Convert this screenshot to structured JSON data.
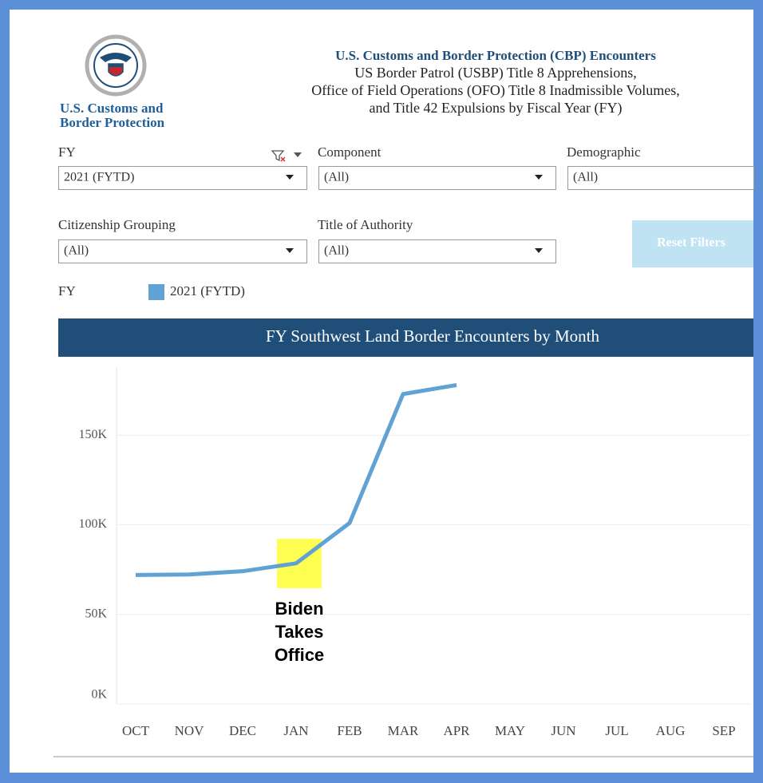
{
  "logo_text": [
    "U.S. Customs and",
    "Border Protection"
  ],
  "header": {
    "title": "U.S. Customs and Border Protection (CBP) Encounters",
    "lines": [
      "US Border Patrol (USBP) Title 8 Apprehensions,",
      "Office of Field Operations (OFO) Title 8 Inadmissible Volumes,",
      "and Title 42 Expulsions by Fiscal Year (FY)"
    ]
  },
  "filters": [
    {
      "label": "FY",
      "value": "2021 (FYTD)"
    },
    {
      "label": "Component",
      "value": "(All)"
    },
    {
      "label": "Demographic",
      "value": "(All)"
    },
    {
      "label": "Citizenship Grouping",
      "value": "(All)"
    },
    {
      "label": "Title of Authority",
      "value": "(All)"
    }
  ],
  "reset_button": "Reset Filters",
  "legend_title": "FY",
  "chart_data": {
    "type": "line",
    "title": "FY Southwest Land Border Encounters by Month",
    "categories": [
      "OCT",
      "NOV",
      "DEC",
      "JAN",
      "FEB",
      "MAR",
      "APR",
      "MAY",
      "JUN",
      "JUL",
      "AUG",
      "SEP"
    ],
    "series": [
      {
        "name": "2021 (FYTD)",
        "color": "#5fa2d3",
        "values": [
          72000,
          72300,
          74100,
          78500,
          101000,
          173000,
          178000,
          null,
          null,
          null,
          null,
          null
        ]
      }
    ],
    "ylim": [
      0,
      188000
    ],
    "yticks": [
      {
        "value": 0,
        "label": "0K"
      },
      {
        "value": 50000,
        "label": "50K"
      },
      {
        "value": 100000,
        "label": "100K"
      },
      {
        "value": 150000,
        "label": "150K"
      }
    ],
    "grid": true,
    "annotation": [
      "Biden",
      "Takes",
      "Office"
    ]
  }
}
